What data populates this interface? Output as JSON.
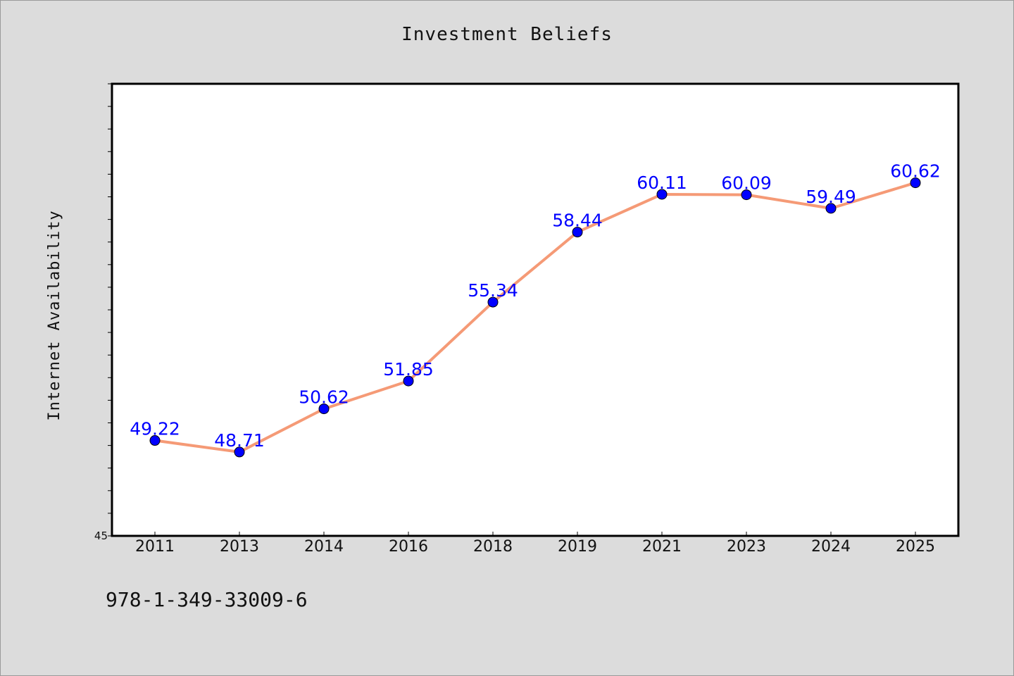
{
  "footer": {
    "code": "978-1-349-33009-6"
  },
  "chart_data": {
    "type": "line",
    "title": "Investment Beliefs",
    "xlabel": "",
    "ylabel": "Internet Availability",
    "categories": [
      "2011",
      "2013",
      "2014",
      "2016",
      "2018",
      "2019",
      "2021",
      "2023",
      "2024",
      "2025"
    ],
    "series": [
      {
        "values": [
          49.22,
          48.71,
          50.62,
          51.85,
          55.34,
          58.44,
          60.11,
          60.09,
          59.49,
          60.62
        ]
      }
    ],
    "y_tick_labels": [
      "45"
    ],
    "ylim": [
      45,
      65
    ],
    "data_labels_shown": true,
    "grid": false,
    "legend": "none",
    "colors": {
      "line": "#f59a76",
      "marker": "#0000ff",
      "data_label": "#0000ff",
      "plot_background": "#ffffff",
      "page_background": "#dcdcdc"
    }
  }
}
